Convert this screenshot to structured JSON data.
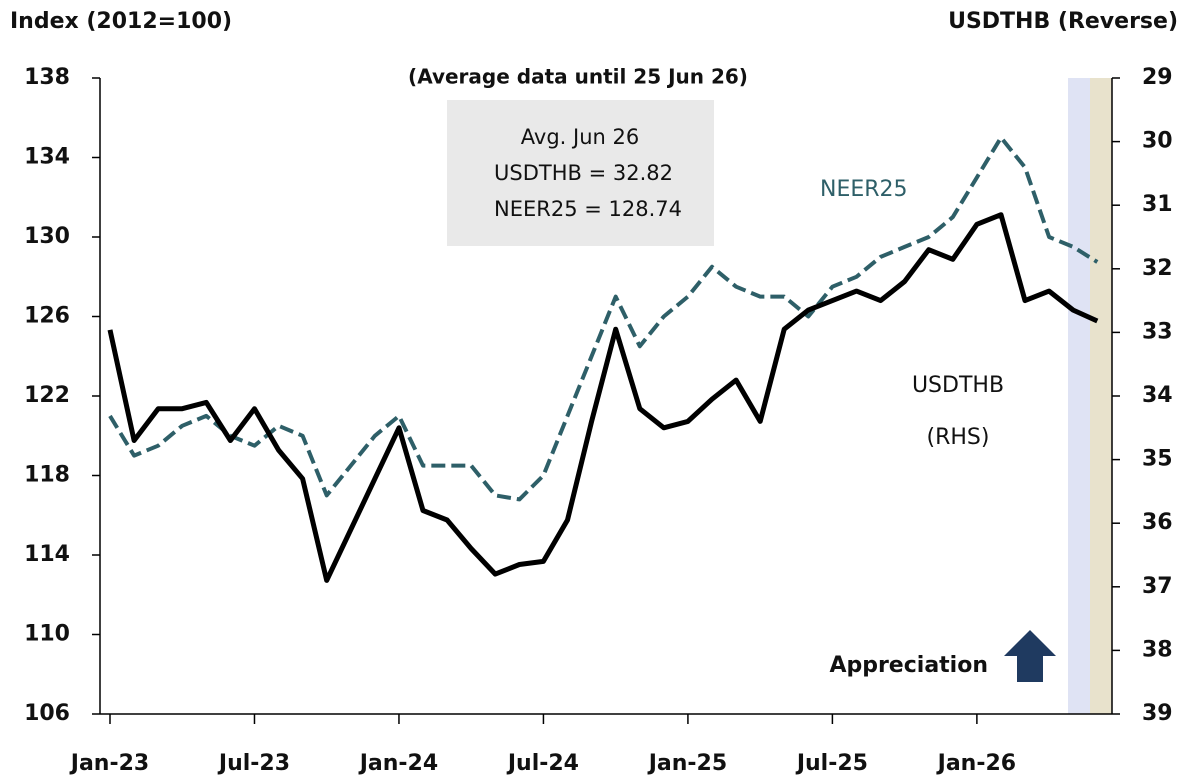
{
  "chart_data": {
    "type": "line",
    "ylabel": "Index (2012=100)",
    "y2label": "USDTHB (Reverse)",
    "subtitle": "(Average data until 25 Jun 26)",
    "box": [
      "Avg. Jun 26",
      "USDTHB = 32.82",
      "NEER25 = 128.74"
    ],
    "annotations": [
      "(RHS)",
      "Appreciation"
    ],
    "categories": [
      "Jan-23",
      null,
      null,
      null,
      null,
      null,
      "Jul-23",
      null,
      null,
      null,
      null,
      null,
      "Jan-24",
      null,
      null,
      null,
      null,
      null,
      "Jul-24",
      null,
      null,
      null,
      null,
      null,
      "Jan-25",
      null,
      null,
      null,
      null,
      null,
      "Jul-25",
      null,
      null,
      null,
      null,
      null,
      "Jan-26",
      null,
      null,
      null,
      null,
      null
    ],
    "series": [
      {
        "name": "NEER25",
        "color": "#2e5f68",
        "dashed": true,
        "values": [
          121,
          119,
          119.5,
          120.5,
          121,
          120,
          119.5,
          120.5,
          120,
          117,
          118.5,
          120,
          121,
          118.5,
          118.5,
          118.5,
          117,
          116.8,
          118,
          121,
          124,
          127,
          124.5,
          126,
          127,
          128.5,
          127.5,
          127,
          127,
          126,
          127.5,
          128,
          129,
          129.5,
          130,
          131,
          133,
          135,
          133.5,
          130,
          129.5,
          128.74
        ]
      },
      {
        "name": "USDTHB",
        "color": "#000000",
        "axis": "y2",
        "values": [
          32.96,
          34.7,
          34.2,
          34.2,
          34.1,
          34.7,
          34.2,
          34.85,
          35.3,
          36.9,
          36.1,
          35.3,
          34.5,
          35.8,
          35.95,
          36.4,
          36.8,
          36.65,
          36.6,
          35.95,
          34.4,
          32.95,
          34.2,
          34.5,
          34.4,
          34.05,
          33.75,
          34.4,
          32.95,
          32.65,
          32.5,
          32.35,
          32.5,
          32.2,
          31.7,
          31.85,
          31.3,
          31.15,
          32.5,
          32.35,
          32.65,
          32.82
        ]
      }
    ],
    "ylim": [
      106,
      138
    ],
    "yticks": [
      106,
      110,
      114,
      118,
      122,
      126,
      130,
      134,
      138
    ],
    "y2lim": [
      39,
      29
    ],
    "y2ticks": [
      39,
      38,
      37,
      36,
      35,
      34,
      33,
      32,
      31,
      30,
      29
    ]
  }
}
